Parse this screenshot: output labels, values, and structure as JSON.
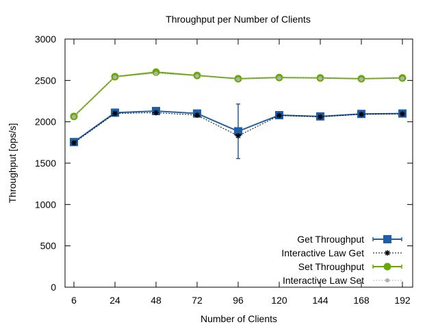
{
  "chart_data": {
    "type": "line",
    "title": "Throughput per Number of Clients",
    "xlabel": "Number of Clients",
    "ylabel": "Throughput [ops/s]",
    "ylim": [
      0,
      3000
    ],
    "yticks": [
      0,
      500,
      1000,
      1500,
      2000,
      2500,
      3000
    ],
    "x": [
      6,
      24,
      48,
      72,
      96,
      120,
      144,
      168,
      192
    ],
    "grid": false,
    "legend_position": "bottom-right",
    "series": [
      {
        "name": "Get Throughput",
        "color": "#1f5fa6",
        "marker": "square",
        "style": "solid",
        "values": [
          1755,
          2110,
          2130,
          2100,
          1885,
          2080,
          2065,
          2095,
          2100
        ],
        "error": [
          10,
          10,
          10,
          10,
          330,
          10,
          10,
          10,
          10
        ]
      },
      {
        "name": "Interactive Law Get",
        "color": "#000000",
        "marker": "star",
        "style": "dotted",
        "values": [
          1745,
          2100,
          2110,
          2080,
          1830,
          2075,
          2060,
          2090,
          2095
        ]
      },
      {
        "name": "Set Throughput",
        "color": "#66aa00",
        "marker": "circle",
        "style": "solid",
        "values": [
          2065,
          2545,
          2600,
          2560,
          2520,
          2535,
          2530,
          2520,
          2530
        ],
        "error": [
          10,
          10,
          10,
          10,
          10,
          10,
          10,
          10,
          10
        ]
      },
      {
        "name": "Interactive Law Set",
        "color": "#b0b0b0",
        "marker": "circle-small",
        "style": "dotted",
        "values": [
          2060,
          2540,
          2585,
          2555,
          2515,
          2530,
          2525,
          2515,
          2525
        ]
      }
    ]
  }
}
